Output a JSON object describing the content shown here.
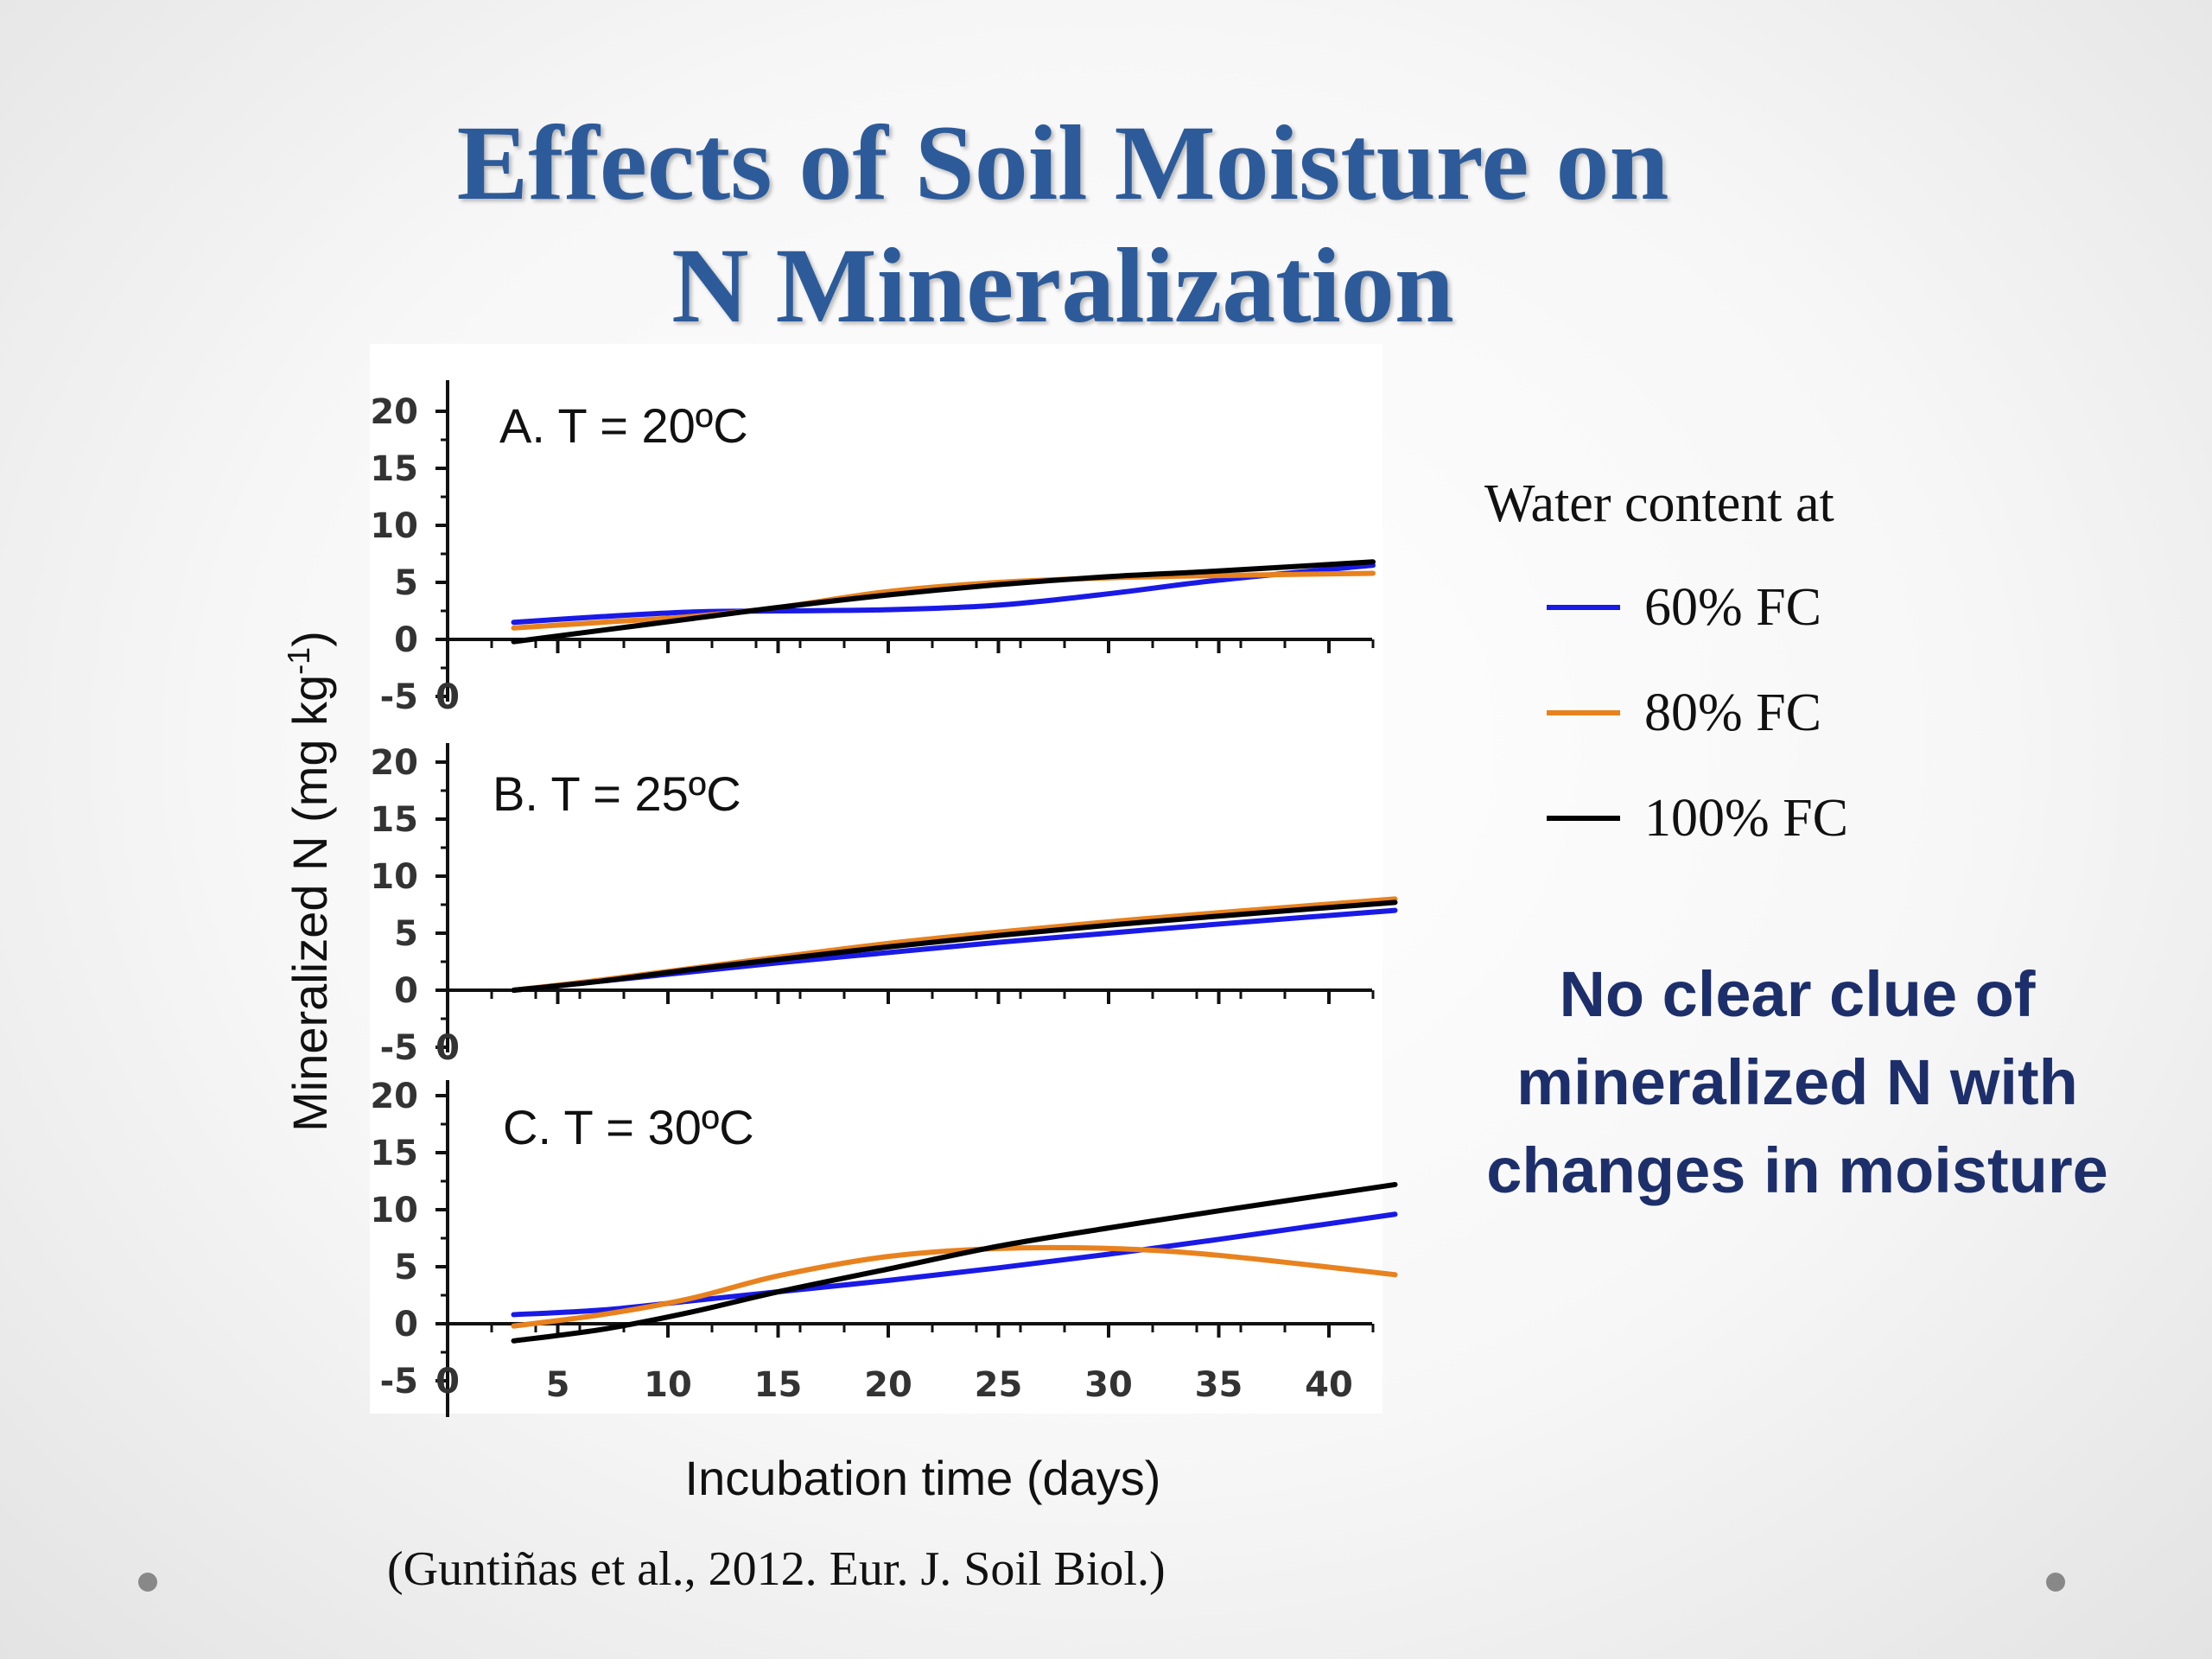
{
  "slide": {
    "title_line1": "Effects of Soil Moisture on",
    "title_line2": "N Mineralization",
    "citation": "(Guntiñas et al., 2012. Eur. J. Soil Biol.)",
    "callout": "No clear clue of mineralized N with changes in moisture"
  },
  "legend": {
    "title": "Water content at",
    "items": [
      {
        "label": "60% FC",
        "color": "#1a1ae6"
      },
      {
        "label": "80% FC",
        "color": "#e8821e"
      },
      {
        "label": "100% FC",
        "color": "#000000"
      }
    ]
  },
  "chart_data": {
    "type": "line",
    "ylabel": "Mineralized N (mg kg-1)",
    "xlabel": "Incubation time (days)",
    "xlim": [
      0,
      43
    ],
    "ylim": [
      -5,
      20
    ],
    "xticks": [
      0,
      5,
      10,
      15,
      20,
      25,
      30,
      35,
      40
    ],
    "yticks": [
      -5,
      0,
      5,
      10,
      15,
      20
    ],
    "panels": [
      {
        "title": "A. T = 20ºC",
        "x": [
          3,
          7,
          11,
          15,
          20,
          25,
          30,
          35,
          42
        ],
        "series": [
          {
            "name": "60% FC",
            "values": [
              1.5,
              2.0,
              2.4,
              2.5,
              2.6,
              3.0,
              4.0,
              5.2,
              6.5
            ]
          },
          {
            "name": "80% FC",
            "values": [
              1.0,
              1.5,
              2.0,
              2.8,
              4.2,
              5.0,
              5.4,
              5.6,
              5.8
            ]
          },
          {
            "name": "100% FC",
            "values": [
              -0.2,
              0.8,
              1.8,
              2.8,
              3.9,
              4.8,
              5.5,
              6.0,
              6.8
            ]
          }
        ]
      },
      {
        "title": "B. T = 25ºC",
        "x": [
          3,
          7,
          11,
          15,
          20,
          25,
          30,
          35,
          43
        ],
        "series": [
          {
            "name": "60% FC",
            "values": [
              0,
              0.8,
              1.6,
              2.4,
              3.3,
              4.2,
              5.0,
              5.8,
              7.0
            ]
          },
          {
            "name": "80% FC",
            "values": [
              0,
              0.9,
              1.9,
              2.9,
              4.1,
              5.1,
              6.0,
              6.8,
              8.0
            ]
          },
          {
            "name": "100% FC",
            "values": [
              0,
              0.8,
              1.8,
              2.7,
              3.8,
              4.8,
              5.7,
              6.5,
              7.7
            ]
          }
        ]
      },
      {
        "title": "C. T = 30ºC",
        "x": [
          3,
          7,
          11,
          15,
          20,
          25,
          30,
          35,
          43
        ],
        "series": [
          {
            "name": "60% FC",
            "values": [
              0.8,
              1.2,
              2.0,
              2.8,
              3.8,
              4.9,
              6.1,
              7.4,
              9.6
            ]
          },
          {
            "name": "80% FC",
            "values": [
              -0.2,
              0.8,
              2.2,
              4.2,
              5.9,
              6.6,
              6.6,
              6.0,
              4.3
            ]
          },
          {
            "name": "100% FC",
            "values": [
              -1.5,
              -0.5,
              1.0,
              2.8,
              4.8,
              6.8,
              8.4,
              9.9,
              12.2
            ]
          }
        ]
      }
    ],
    "grid": false,
    "legend_position": "right"
  }
}
